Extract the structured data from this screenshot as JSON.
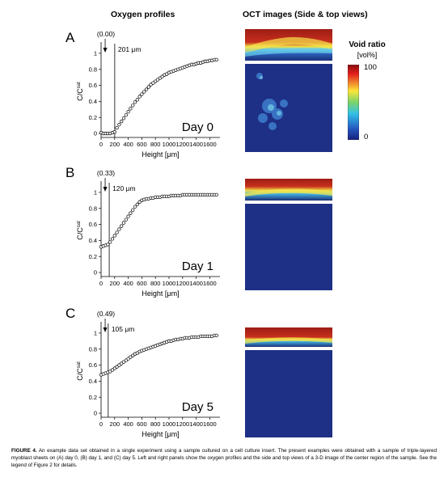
{
  "headers": {
    "left": "Oxygen profiles",
    "right": "OCT images (Side & top views)"
  },
  "legend": {
    "title": "Void ratio",
    "unit": "[vol%]",
    "max": "100",
    "min": "0"
  },
  "caption": {
    "label": "FIGURE 4.",
    "text": "An example data set obtained in a single experiment using a sample cultured on a cell culture insert. The present examples were obtained with a sample of triple-layered myoblast sheets on (A) day 0, (B) day 1, and (C) day 5. Left and right panels show the oxygen profiles and the side and top views of a 3-D image of the center region of the sample. See the legend of Figure 2 for details."
  },
  "chart_data": [
    {
      "type": "scatter",
      "panel": "A",
      "day_label": "Day 0",
      "surface_value_label": "(0.00)",
      "thickness_label": "201 μm",
      "thickness_um": 201,
      "xlabel": "Height [μm]",
      "ylabel": "C/C^sat",
      "xlim": [
        0,
        1750
      ],
      "ylim": [
        -0.05,
        1.1
      ],
      "xticks": [
        0,
        200,
        400,
        600,
        800,
        1000,
        1200,
        1400,
        1600
      ],
      "yticks": [
        0,
        0.2,
        0.4,
        0.6,
        0.8,
        1
      ],
      "x": [
        0,
        33,
        67,
        100,
        133,
        167,
        200,
        233,
        267,
        300,
        333,
        367,
        400,
        433,
        467,
        500,
        533,
        567,
        600,
        633,
        667,
        700,
        733,
        767,
        800,
        833,
        867,
        900,
        933,
        967,
        1000,
        1033,
        1067,
        1100,
        1133,
        1167,
        1200,
        1233,
        1267,
        1300,
        1333,
        1367,
        1400,
        1433,
        1467,
        1500,
        1533,
        1567,
        1600,
        1633,
        1667,
        1700
      ],
      "y": [
        0.01,
        0.0,
        0.0,
        0.0,
        0.0,
        0.01,
        0.02,
        0.07,
        0.11,
        0.15,
        0.19,
        0.23,
        0.27,
        0.31,
        0.35,
        0.39,
        0.42,
        0.46,
        0.49,
        0.52,
        0.55,
        0.58,
        0.61,
        0.63,
        0.65,
        0.67,
        0.69,
        0.71,
        0.73,
        0.74,
        0.76,
        0.77,
        0.78,
        0.79,
        0.8,
        0.81,
        0.82,
        0.83,
        0.84,
        0.85,
        0.86,
        0.86,
        0.87,
        0.88,
        0.88,
        0.89,
        0.9,
        0.9,
        0.91,
        0.91,
        0.92,
        0.92
      ]
    },
    {
      "type": "scatter",
      "panel": "B",
      "day_label": "Day 1",
      "surface_value_label": "(0.33)",
      "thickness_label": "120 μm",
      "thickness_um": 120,
      "xlabel": "Height [μm]",
      "ylabel": "C/C^sat",
      "xlim": [
        0,
        1750
      ],
      "ylim": [
        -0.05,
        1.1
      ],
      "xticks": [
        0,
        200,
        400,
        600,
        800,
        1000,
        1200,
        1400,
        1600
      ],
      "yticks": [
        0,
        0.2,
        0.4,
        0.6,
        0.8,
        1
      ],
      "x": [
        0,
        33,
        67,
        100,
        133,
        167,
        200,
        233,
        267,
        300,
        333,
        367,
        400,
        433,
        467,
        500,
        533,
        567,
        600,
        633,
        667,
        700,
        733,
        767,
        800,
        833,
        867,
        900,
        933,
        967,
        1000,
        1033,
        1067,
        1100,
        1133,
        1167,
        1200,
        1233,
        1267,
        1300,
        1333,
        1367,
        1400,
        1433,
        1467,
        1500,
        1533,
        1567,
        1600,
        1633,
        1667,
        1700
      ],
      "y": [
        0.32,
        0.33,
        0.34,
        0.35,
        0.38,
        0.42,
        0.46,
        0.5,
        0.54,
        0.58,
        0.62,
        0.66,
        0.7,
        0.74,
        0.78,
        0.82,
        0.85,
        0.88,
        0.9,
        0.91,
        0.92,
        0.92,
        0.93,
        0.93,
        0.94,
        0.94,
        0.94,
        0.95,
        0.95,
        0.95,
        0.95,
        0.96,
        0.96,
        0.96,
        0.96,
        0.96,
        0.97,
        0.97,
        0.97,
        0.97,
        0.97,
        0.97,
        0.97,
        0.97,
        0.97,
        0.97,
        0.97,
        0.97,
        0.97,
        0.97,
        0.97,
        0.97
      ]
    },
    {
      "type": "scatter",
      "panel": "C",
      "day_label": "Day 5",
      "surface_value_label": "(0.49)",
      "thickness_label": "105 μm",
      "thickness_um": 105,
      "xlabel": "Height [μm]",
      "ylabel": "C/C^sat",
      "xlim": [
        0,
        1750
      ],
      "ylim": [
        -0.05,
        1.1
      ],
      "xticks": [
        0,
        200,
        400,
        600,
        800,
        1000,
        1200,
        1400,
        1600
      ],
      "yticks": [
        0,
        0.2,
        0.4,
        0.6,
        0.8,
        1
      ],
      "x": [
        0,
        33,
        67,
        100,
        133,
        167,
        200,
        233,
        267,
        300,
        333,
        367,
        400,
        433,
        467,
        500,
        533,
        567,
        600,
        633,
        667,
        700,
        733,
        767,
        800,
        833,
        867,
        900,
        933,
        967,
        1000,
        1033,
        1067,
        1100,
        1133,
        1167,
        1200,
        1233,
        1267,
        1300,
        1333,
        1367,
        1400,
        1433,
        1467,
        1500,
        1533,
        1567,
        1600,
        1633,
        1667,
        1700
      ],
      "y": [
        0.48,
        0.49,
        0.5,
        0.51,
        0.52,
        0.54,
        0.56,
        0.58,
        0.6,
        0.62,
        0.64,
        0.66,
        0.68,
        0.7,
        0.72,
        0.74,
        0.75,
        0.77,
        0.78,
        0.79,
        0.8,
        0.81,
        0.82,
        0.83,
        0.84,
        0.85,
        0.86,
        0.87,
        0.88,
        0.89,
        0.9,
        0.9,
        0.91,
        0.92,
        0.92,
        0.93,
        0.93,
        0.94,
        0.94,
        0.94,
        0.95,
        0.95,
        0.95,
        0.95,
        0.96,
        0.96,
        0.96,
        0.96,
        0.96,
        0.96,
        0.97,
        0.97
      ]
    }
  ]
}
